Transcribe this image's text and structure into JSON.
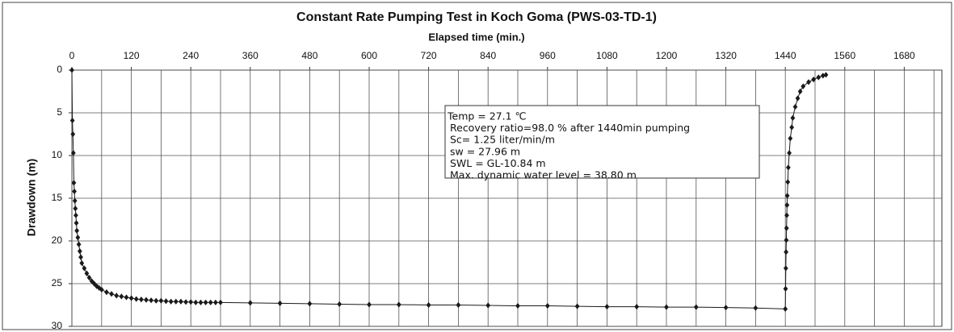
{
  "chart_data": {
    "type": "line",
    "title": "Constant Rate Pumping Test in Koch Goma (PWS-03-TD-1)",
    "x_label": "Elapsed time (min.)",
    "y_label": "Drawdown (m)",
    "annotation": [
      "Temp = 27.1 ℃",
      "Recovery ratio=98.0 % after 1440min  pumping",
      "Sc= 1.25 liter/min/m",
      "sw = 27.96 m",
      "SWL = GL-10.84 m",
      "Max. dynamic water level = 38.80 m"
    ],
    "color": "#1a1a1a",
    "x": [
      0,
      1,
      2,
      3,
      4,
      5,
      6,
      7,
      8,
      9,
      10,
      12,
      14,
      16,
      18,
      20,
      25,
      30,
      35,
      40,
      45,
      50,
      55,
      60,
      70,
      80,
      90,
      100,
      110,
      120,
      130,
      140,
      150,
      160,
      170,
      180,
      190,
      200,
      210,
      220,
      230,
      240,
      250,
      260,
      270,
      280,
      290,
      300,
      360,
      420,
      480,
      540,
      600,
      660,
      720,
      780,
      840,
      900,
      960,
      1020,
      1080,
      1140,
      1200,
      1260,
      1320,
      1380,
      1440,
      1440.5,
      1441,
      1441.5,
      1442,
      1442.5,
      1443,
      1443.5,
      1444,
      1445,
      1446,
      1448,
      1450,
      1453,
      1455,
      1460,
      1465,
      1470,
      1476,
      1487,
      1497,
      1507,
      1516,
      1522
    ],
    "values": [
      0,
      5.9,
      7.5,
      9.7,
      13.2,
      14.2,
      15.3,
      16.2,
      17.0,
      17.9,
      18.8,
      19.6,
      20.4,
      21.2,
      21.9,
      22.6,
      23.2,
      23.8,
      24.3,
      24.7,
      25.0,
      25.3,
      25.5,
      25.7,
      26.0,
      26.2,
      26.4,
      26.5,
      26.6,
      26.7,
      26.8,
      26.85,
      26.9,
      26.95,
      27.0,
      27.0,
      27.05,
      27.1,
      27.1,
      27.1,
      27.15,
      27.15,
      27.2,
      27.2,
      27.2,
      27.2,
      27.2,
      27.2,
      27.25,
      27.3,
      27.35,
      27.4,
      27.45,
      27.45,
      27.5,
      27.5,
      27.55,
      27.6,
      27.6,
      27.65,
      27.7,
      27.7,
      27.75,
      27.75,
      27.8,
      27.85,
      27.96,
      25.6,
      23.2,
      21.3,
      19.9,
      18.5,
      17.0,
      15.8,
      14.7,
      13.1,
      11.4,
      9.7,
      8.0,
      6.7,
      5.6,
      4.3,
      3.3,
      2.5,
      1.9,
      1.4,
      1.1,
      0.85,
      0.65,
      0.55
    ],
    "xlim": [
      0,
      1756
    ],
    "xticks": [
      0,
      120,
      240,
      360,
      480,
      600,
      720,
      840,
      960,
      1080,
      1200,
      1320,
      1440,
      1560,
      1680
    ],
    "xminorticks": [
      60,
      180,
      300,
      420,
      540,
      660,
      780,
      900,
      1020,
      1140,
      1260,
      1380,
      1500,
      1620,
      1740
    ],
    "ylim": [
      0,
      30
    ],
    "yticks": [
      0,
      5,
      10,
      15,
      20,
      25,
      30
    ],
    "y_inverted": true,
    "x_axis_position": "top",
    "grid": true
  }
}
